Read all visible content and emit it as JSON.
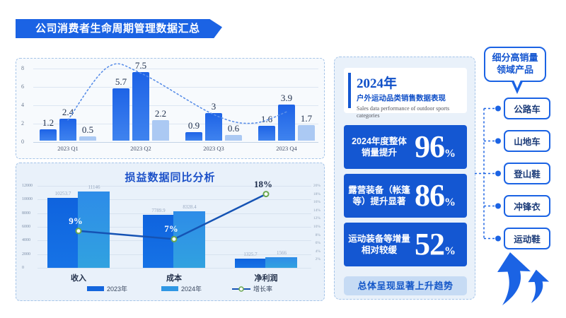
{
  "title_banner": {
    "text": "公司消费者生命周期管理数据汇总"
  },
  "colors": {
    "accent": "#1b63e4",
    "stat_card_bg": "#1457d2",
    "bar_blue_top": "#1e63e6",
    "bar_blue_bottom": "#3f83ef",
    "bar_light": "#abc9f3",
    "bar_2023": "#1466dd",
    "bar_2024": "#2f97e4",
    "growth_line": "#1553b4",
    "dot_ring": "#6aa84f",
    "panel_bg": "#e9f1fa"
  },
  "chart_data": [
    {
      "id": "quarterly",
      "type": "bar",
      "categories": [
        "2023 Q1",
        "2023 Q2",
        "2023 Q3",
        "2023 Q4"
      ],
      "series": [
        {
          "name": "series-1",
          "values": [
            1.2,
            5.7,
            0.9,
            1.6
          ]
        },
        {
          "name": "series-2",
          "values": [
            2.4,
            7.5,
            3,
            3.9
          ]
        },
        {
          "name": "series-3",
          "values": [
            0.5,
            2.2,
            0.6,
            1.7
          ]
        }
      ],
      "trend_on_series": "series-2",
      "yticks": [
        0,
        2,
        4,
        6,
        8
      ],
      "ylim": [
        0,
        8.8
      ],
      "grid": true,
      "legend": "none"
    },
    {
      "id": "profit-loss",
      "type": "bar+line",
      "title": "损益数据同比分析",
      "categories": [
        "收入",
        "成本",
        "净利润"
      ],
      "series": [
        {
          "name": "2023年",
          "values": [
            10253.7,
            7789.9,
            1325.7
          ]
        },
        {
          "name": "2024年",
          "values": [
            11146,
            8328.4,
            1566
          ]
        }
      ],
      "line": {
        "name": "增长率",
        "values_pct": [
          9,
          7,
          18
        ],
        "labels": [
          "9%",
          "7%",
          "18%"
        ]
      },
      "yticks_left": [
        0,
        2000,
        4000,
        6000,
        8000,
        10000,
        12000
      ],
      "yticks_right_pct": [
        2,
        4,
        6,
        8,
        10,
        12,
        14,
        16,
        18,
        20
      ],
      "ylim_left": [
        0,
        12000
      ],
      "ylim_right_pct": [
        0,
        20
      ],
      "legend_entries": [
        "2023年",
        "2024年",
        "增长率"
      ],
      "legend_position": "bottom"
    }
  ],
  "right_panel": {
    "header": {
      "year": "2024年",
      "subtitle_zh": "户外运动品类销售数据表现",
      "subtitle_en": "Sales data performance of outdoor sports categories"
    },
    "stats": [
      {
        "label_lines": [
          "2024年度整体",
          "销量提升"
        ],
        "value": "96",
        "unit": "%"
      },
      {
        "label_lines": [
          "露营装备（帐篷",
          "等）提升显著"
        ],
        "value": "86",
        "unit": "%"
      },
      {
        "label_lines": [
          "运动装备等增量",
          "相对较缓"
        ],
        "value": "52",
        "unit": "%"
      }
    ],
    "footer": "总体呈现显著上升趋势"
  },
  "right_column": {
    "bubble_lines": [
      "细分高销量",
      "领域产品"
    ],
    "items": [
      "公路车",
      "山地车",
      "登山鞋",
      "冲锋衣",
      "运动鞋"
    ]
  }
}
